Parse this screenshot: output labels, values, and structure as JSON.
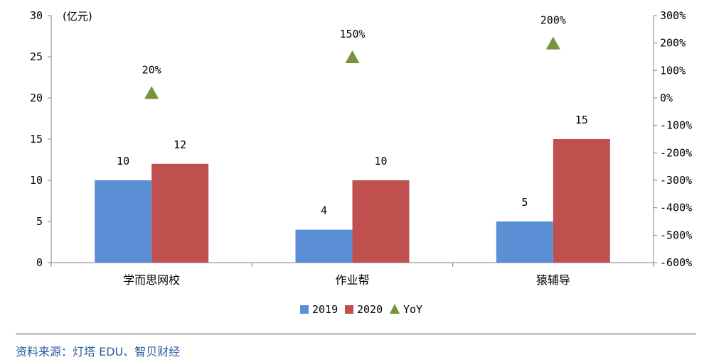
{
  "chart_data": {
    "type": "bar",
    "categories": [
      "学而思网校",
      "作业帮",
      "猿辅导"
    ],
    "series": [
      {
        "name": "2019",
        "values": [
          10,
          4,
          5
        ],
        "color": "#5a8fd6"
      },
      {
        "name": "2020",
        "values": [
          12,
          10,
          15
        ],
        "color": "#c0504d"
      }
    ],
    "yoy": {
      "name": "YoY",
      "values": [
        20,
        150,
        200
      ],
      "labels": [
        "20%",
        "150%",
        "200%"
      ],
      "color": "#76923c"
    },
    "ylabel": "(亿元)",
    "ylim": [
      0,
      30
    ],
    "y_ticks": [
      "0",
      "5",
      "10",
      "15",
      "20",
      "25",
      "30"
    ],
    "y2lim": [
      -600,
      300
    ],
    "y2_ticks": [
      "-600%",
      "-500%",
      "-400%",
      "-300%",
      "-200%",
      "-100%",
      "0%",
      "100%",
      "200%",
      "300%"
    ],
    "grid": false,
    "legend_position": "bottom"
  },
  "source": "资料来源：灯塔 EDU、智贝财经"
}
